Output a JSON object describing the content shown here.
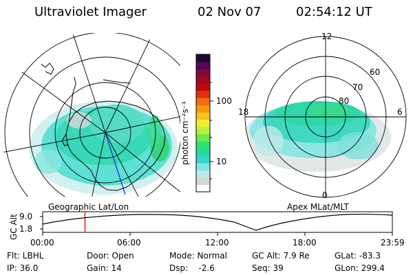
{
  "header": {
    "title": "Ultraviolet Imager",
    "date": "02 Nov 07",
    "time": "02:54:12 UT"
  },
  "colorbar": {
    "label": "photon cm⁻²s⁻¹",
    "ticks": [
      "100",
      "10"
    ],
    "colors": [
      "#ffffff",
      "#d6d6d6",
      "#b8ecec",
      "#7fe6e6",
      "#33d6c8",
      "#26d99e",
      "#33e070",
      "#6ee84a",
      "#b8f040",
      "#e8f030",
      "#f5c020",
      "#f59a10",
      "#f07010",
      "#e03010",
      "#c00810",
      "#a00820",
      "#800840",
      "#500850",
      "#200830"
    ]
  },
  "left_map": {
    "caption": "Geographic Lat/Lon"
  },
  "right_map": {
    "caption": "Apex MLat/MLT",
    "mlt_labels": [
      "12",
      "18",
      "6",
      "0"
    ],
    "mlat_labels": [
      "60",
      "70",
      "80"
    ]
  },
  "timeline": {
    "axis_title": "GC Alt",
    "y_ticks": [
      "9.0",
      "1.8"
    ],
    "x_ticks": [
      "00:00",
      "06:00",
      "12:00",
      "18:00",
      "23:59"
    ],
    "current_time_fraction": 0.121
  },
  "info": {
    "filter": "Flt: LBHL",
    "ip": "IP: 36.0",
    "door": "Door: Open",
    "gain": "Gain: 14",
    "mode": "Mode: Normal",
    "dsp": "Dsp:    -2.6",
    "gc_alt": "GC Alt: 7.9 Re",
    "seq": "Seq: 39",
    "glat": "GLat: -83.3",
    "glon": "GLon: 299.4"
  }
}
